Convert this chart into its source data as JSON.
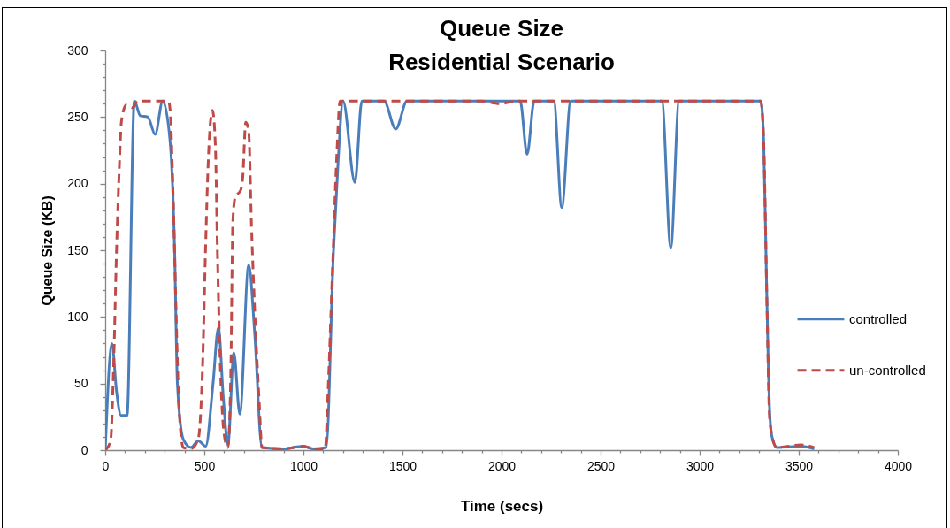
{
  "chart_data": {
    "type": "line",
    "title": "Queue Size",
    "subtitle": "Residential Scenario",
    "xlabel": "Time (secs)",
    "ylabel": "Queue Size (KB)",
    "legend": "right",
    "xlim": [
      0,
      4000
    ],
    "xticks": [
      0,
      {
        "value": 100,
        "label": null
      },
      {
        "value": 200,
        "label": null
      },
      {
        "value": 300,
        "label": null
      },
      {
        "value": 400,
        "label": null
      },
      500,
      {
        "value": 600,
        "label": null
      },
      {
        "value": 700,
        "label": null
      },
      {
        "value": 800,
        "label": null
      },
      {
        "value": 900,
        "label": null
      },
      1000,
      {
        "value": 1100,
        "label": null
      },
      {
        "value": 1200,
        "label": null
      },
      {
        "value": 1300,
        "label": null
      },
      {
        "value": 1400,
        "label": null
      },
      1500,
      {
        "value": 1600,
        "label": null
      },
      {
        "value": 1700,
        "label": null
      },
      {
        "value": 1800,
        "label": null
      },
      {
        "value": 1900,
        "label": null
      },
      2000,
      {
        "value": 2100,
        "label": null
      },
      {
        "value": 2200,
        "label": null
      },
      {
        "value": 2300,
        "label": null
      },
      {
        "value": 2400,
        "label": null
      },
      2500,
      {
        "value": 2600,
        "label": null
      },
      {
        "value": 2700,
        "label": null
      },
      {
        "value": 2800,
        "label": null
      },
      {
        "value": 2900,
        "label": null
      },
      3000,
      {
        "value": 3100,
        "label": null
      },
      {
        "value": 3200,
        "label": null
      },
      {
        "value": 3300,
        "label": null
      },
      {
        "value": 3400,
        "label": null
      },
      3500,
      {
        "value": 3600,
        "label": null
      },
      {
        "value": 3700,
        "label": null
      },
      {
        "value": 3800,
        "label": null
      },
      {
        "value": 3900,
        "label": null
      },
      4000
    ],
    "ylim": [
      0,
      300
    ],
    "yticks": [
      0,
      {
        "value": 10,
        "label": null
      },
      {
        "value": 20,
        "label": null
      },
      {
        "value": 30,
        "label": null
      },
      {
        "value": 40,
        "label": null
      },
      50,
      {
        "value": 60,
        "label": null
      },
      {
        "value": 70,
        "label": null
      },
      {
        "value": 80,
        "label": null
      },
      {
        "value": 90,
        "label": null
      },
      100,
      {
        "value": 110,
        "label": null
      },
      {
        "value": 120,
        "label": null
      },
      {
        "value": 130,
        "label": null
      },
      {
        "value": 140,
        "label": null
      },
      150,
      {
        "value": 160,
        "label": null
      },
      {
        "value": 170,
        "label": null
      },
      {
        "value": 180,
        "label": null
      },
      {
        "value": 190,
        "label": null
      },
      200,
      {
        "value": 210,
        "label": null
      },
      {
        "value": 220,
        "label": null
      },
      {
        "value": 230,
        "label": null
      },
      {
        "value": 240,
        "label": null
      },
      250,
      {
        "value": 260,
        "label": null
      },
      {
        "value": 270,
        "label": null
      },
      {
        "value": 280,
        "label": null
      },
      {
        "value": 290,
        "label": null
      },
      300
    ],
    "series": [
      {
        "name": "controlled",
        "color": "#4a7ebb",
        "line_style": "solid",
        "x": [
          0,
          34,
          57,
          80,
          110,
          147,
          177,
          215,
          252,
          290,
          327,
          350,
          364,
          394,
          432,
          470,
          507,
          544,
          571,
          596,
          619,
          649,
          679,
          724,
          754,
          791,
          900,
          1000,
          1050,
          1115,
          1152,
          1175,
          1200,
          1260,
          1295,
          1407,
          1466,
          1523,
          2094,
          2129,
          2165,
          2264,
          2304,
          2349,
          2809,
          2854,
          2896,
          3308,
          3323,
          3338,
          3353,
          3365,
          3390,
          3510,
          3578
        ],
        "values": [
          0,
          80,
          44,
          26,
          26,
          262,
          251,
          250,
          237,
          262,
          232,
          150,
          50,
          8,
          2,
          7,
          3,
          50,
          92,
          39,
          4,
          73,
          27,
          139,
          88,
          2,
          1,
          3,
          1,
          2,
          150,
          216,
          262,
          201,
          262,
          262,
          241,
          262,
          262,
          222,
          262,
          262,
          182,
          262,
          262,
          152,
          262,
          262,
          232,
          121,
          30,
          10,
          2,
          3,
          1
        ]
      },
      {
        "name": "un-controlled",
        "color": "#be4b48",
        "line_style": "dashed",
        "x": [
          0,
          27,
          42,
          57,
          72,
          82,
          106,
          139,
          162,
          319,
          327,
          342,
          357,
          372,
          394,
          431,
          469,
          491,
          506,
          521,
          541,
          556,
          566,
          581,
          604,
          619,
          634,
          644,
          656,
          683,
          694,
          709,
          724,
          738,
          754,
          776,
          791,
          900,
          1000,
          1050,
          1110,
          1123,
          1145,
          1167,
          1185,
          1900,
          1990,
          2080,
          3308,
          3323,
          3338,
          3353,
          3375,
          3390,
          3510,
          3578
        ],
        "values": [
          0,
          7,
          62,
          150,
          216,
          247,
          259,
          257,
          262,
          262,
          256,
          194,
          106,
          33,
          2,
          1,
          8,
          62,
          150,
          221,
          255,
          228,
          150,
          62,
          8,
          2,
          62,
          172,
          190,
          195,
          205,
          246,
          239,
          168,
          106,
          39,
          2,
          1,
          3,
          1,
          1,
          39,
          128,
          216,
          262,
          262,
          260,
          262,
          262,
          232,
          121,
          24,
          5,
          2,
          4,
          2
        ]
      }
    ]
  }
}
